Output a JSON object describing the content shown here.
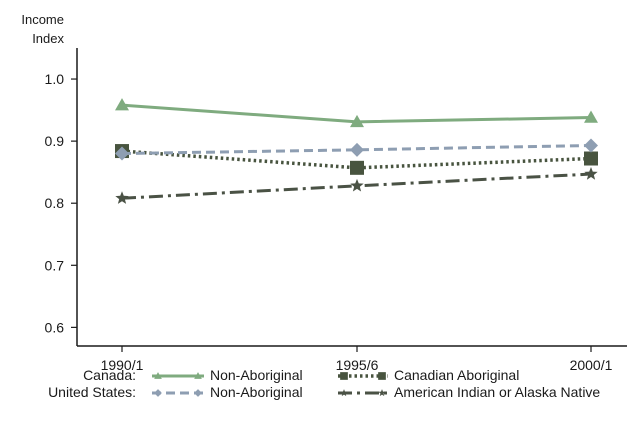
{
  "chart_data": {
    "type": "line",
    "ylabel": "Income Index",
    "ylabel_lines": [
      "Income",
      "Index"
    ],
    "categories": [
      "1990/1",
      "1995/6",
      "2000/1"
    ],
    "y_ticks": [
      "0.6",
      "0.7",
      "0.8",
      "0.9",
      "1.0"
    ],
    "ylim": [
      0.57,
      1.05
    ],
    "grid": false,
    "legend_placement": "bottom",
    "series": [
      {
        "country": "Canada:",
        "name": "Non-Aboriginal",
        "values": [
          0.958,
          0.931,
          0.938
        ],
        "color": "#7fab7f",
        "dash": "solid",
        "marker": "triangle"
      },
      {
        "country": "Canada:",
        "name": "Canadian Aboriginal",
        "values": [
          0.884,
          0.857,
          0.872
        ],
        "color": "#48543f",
        "dash": "dot",
        "marker": "square"
      },
      {
        "country": "United States:",
        "name": "Non-Aboriginal",
        "values": [
          0.88,
          0.886,
          0.893
        ],
        "color": "#8e9eb2",
        "dash": "dash",
        "marker": "diamond"
      },
      {
        "country": "United States:",
        "name": "American Indian or Alaska Native",
        "values": [
          0.808,
          0.828,
          0.847
        ],
        "color": "#4a5245",
        "dash": "dashdot",
        "marker": "star"
      }
    ]
  }
}
